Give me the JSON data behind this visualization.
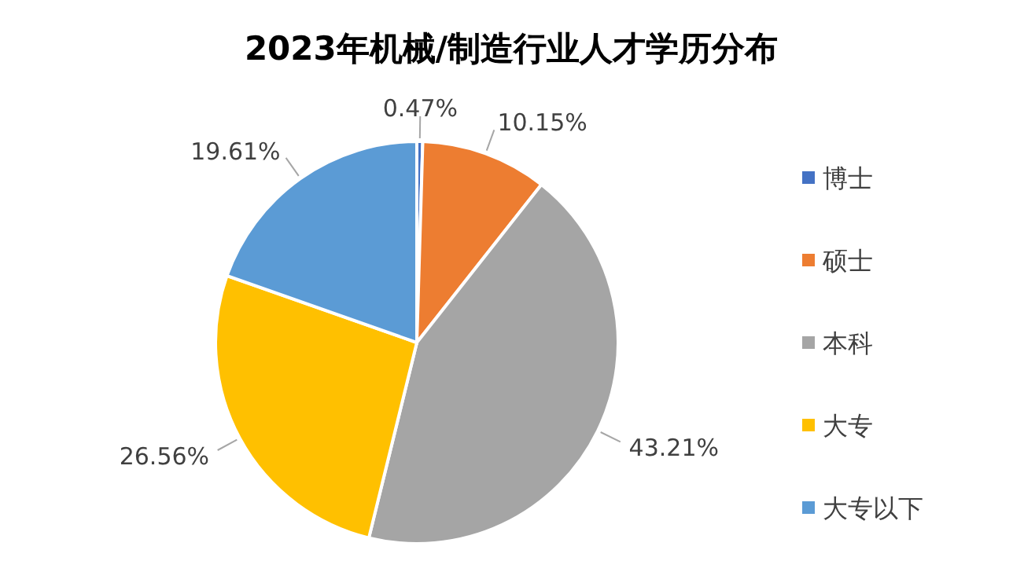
{
  "chart_data": {
    "type": "pie",
    "title": "2023年机械/制造行业人才学历分布",
    "categories": [
      "博士",
      "硕士",
      "本科",
      "大专",
      "大专以下"
    ],
    "values": [
      0.47,
      10.15,
      43.21,
      26.56,
      19.61
    ],
    "value_labels": [
      "0.47%",
      "10.15%",
      "43.21%",
      "26.56%",
      "19.61%"
    ],
    "colors": [
      "#4472c4",
      "#ed7d31",
      "#a5a5a5",
      "#ffc000",
      "#5b9bd5"
    ],
    "legend": "right"
  }
}
